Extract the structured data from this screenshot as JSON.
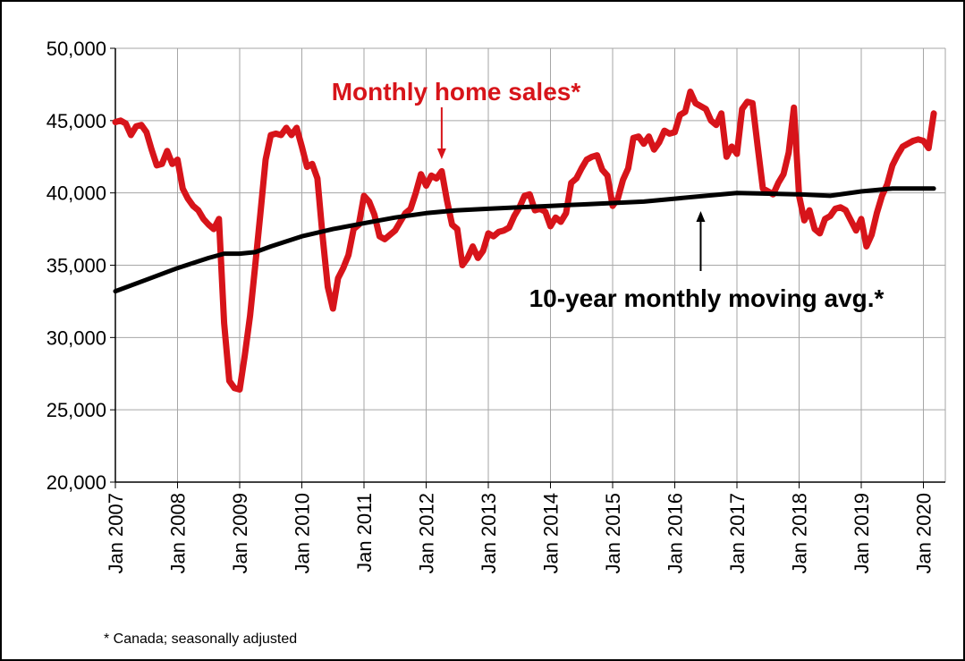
{
  "chart_data": {
    "type": "line",
    "title": "",
    "xlabel": "",
    "ylabel": "",
    "ylim": [
      20000,
      50000
    ],
    "yticks": [
      20000,
      25000,
      30000,
      35000,
      40000,
      45000,
      50000
    ],
    "ytick_labels": [
      "20,000",
      "25,000",
      "30,000",
      "35,000",
      "40,000",
      "45,000",
      "50,000"
    ],
    "xlim": [
      "2007-01",
      "2020-03"
    ],
    "xticks": [
      "2007-01",
      "2008-01",
      "2009-01",
      "2010-01",
      "2011-01",
      "2012-01",
      "2013-01",
      "2014-01",
      "2015-01",
      "2016-01",
      "2017-01",
      "2018-01",
      "2019-01",
      "2020-01"
    ],
    "xtick_labels": [
      "Jan 2007",
      "Jan 2008",
      "Jan 2009",
      "Jan 2010",
      "Jan 2011",
      "Jan 2012",
      "Jan 2013",
      "Jan 2014",
      "Jan 2015",
      "Jan 2016",
      "Jan 2017",
      "Jan 2018",
      "Jan 2019",
      "Jan 2020"
    ],
    "grid": true,
    "series": [
      {
        "name": "Monthly home sales*",
        "color": "#d7141a",
        "points": [
          [
            "2007-01",
            44900
          ],
          [
            "2007-02",
            45000
          ],
          [
            "2007-03",
            44800
          ],
          [
            "2007-04",
            44000
          ],
          [
            "2007-05",
            44600
          ],
          [
            "2007-06",
            44700
          ],
          [
            "2007-07",
            44200
          ],
          [
            "2007-08",
            43000
          ],
          [
            "2007-09",
            41900
          ],
          [
            "2007-10",
            42000
          ],
          [
            "2007-11",
            42900
          ],
          [
            "2007-12",
            42000
          ],
          [
            "2008-01",
            42300
          ],
          [
            "2008-02",
            40300
          ],
          [
            "2008-03",
            39600
          ],
          [
            "2008-04",
            39100
          ],
          [
            "2008-05",
            38800
          ],
          [
            "2008-06",
            38200
          ],
          [
            "2008-07",
            37800
          ],
          [
            "2008-08",
            37500
          ],
          [
            "2008-09",
            38200
          ],
          [
            "2008-10",
            31000
          ],
          [
            "2008-11",
            27000
          ],
          [
            "2008-12",
            26500
          ],
          [
            "2009-01",
            26400
          ],
          [
            "2009-02",
            28800
          ],
          [
            "2009-03",
            31500
          ],
          [
            "2009-04",
            35000
          ],
          [
            "2009-05",
            38600
          ],
          [
            "2009-06",
            42300
          ],
          [
            "2009-07",
            44000
          ],
          [
            "2009-08",
            44100
          ],
          [
            "2009-09",
            44000
          ],
          [
            "2009-10",
            44500
          ],
          [
            "2009-11",
            44000
          ],
          [
            "2009-12",
            44500
          ],
          [
            "2010-01",
            43200
          ],
          [
            "2010-02",
            41800
          ],
          [
            "2010-03",
            42000
          ],
          [
            "2010-04",
            41000
          ],
          [
            "2010-05",
            37000
          ],
          [
            "2010-06",
            33500
          ],
          [
            "2010-07",
            32000
          ],
          [
            "2010-08",
            34100
          ],
          [
            "2010-09",
            34800
          ],
          [
            "2010-10",
            35700
          ],
          [
            "2010-11",
            37500
          ],
          [
            "2010-12",
            37800
          ],
          [
            "2011-01",
            39800
          ],
          [
            "2011-02",
            39400
          ],
          [
            "2011-03",
            38500
          ],
          [
            "2011-04",
            37000
          ],
          [
            "2011-05",
            36800
          ],
          [
            "2011-06",
            37100
          ],
          [
            "2011-07",
            37400
          ],
          [
            "2011-08",
            38000
          ],
          [
            "2011-09",
            38600
          ],
          [
            "2011-10",
            38900
          ],
          [
            "2011-11",
            40000
          ],
          [
            "2011-12",
            41300
          ],
          [
            "2012-01",
            40500
          ],
          [
            "2012-02",
            41200
          ],
          [
            "2012-03",
            41000
          ],
          [
            "2012-04",
            41500
          ],
          [
            "2012-05",
            39500
          ],
          [
            "2012-06",
            37800
          ],
          [
            "2012-07",
            37500
          ],
          [
            "2012-08",
            35000
          ],
          [
            "2012-09",
            35500
          ],
          [
            "2012-10",
            36300
          ],
          [
            "2012-11",
            35500
          ],
          [
            "2012-12",
            36000
          ],
          [
            "2013-01",
            37200
          ],
          [
            "2013-02",
            37000
          ],
          [
            "2013-03",
            37300
          ],
          [
            "2013-04",
            37400
          ],
          [
            "2013-05",
            37600
          ],
          [
            "2013-06",
            38400
          ],
          [
            "2013-07",
            39000
          ],
          [
            "2013-08",
            39800
          ],
          [
            "2013-09",
            39900
          ],
          [
            "2013-10",
            38800
          ],
          [
            "2013-11",
            38900
          ],
          [
            "2013-12",
            38700
          ],
          [
            "2014-01",
            37700
          ],
          [
            "2014-02",
            38300
          ],
          [
            "2014-03",
            38000
          ],
          [
            "2014-04",
            38600
          ],
          [
            "2014-05",
            40700
          ],
          [
            "2014-06",
            41000
          ],
          [
            "2014-07",
            41700
          ],
          [
            "2014-08",
            42300
          ],
          [
            "2014-09",
            42500
          ],
          [
            "2014-10",
            42600
          ],
          [
            "2014-11",
            41600
          ],
          [
            "2014-12",
            41200
          ],
          [
            "2015-01",
            39100
          ],
          [
            "2015-02",
            39600
          ],
          [
            "2015-03",
            40900
          ],
          [
            "2015-04",
            41700
          ],
          [
            "2015-05",
            43800
          ],
          [
            "2015-06",
            43900
          ],
          [
            "2015-07",
            43400
          ],
          [
            "2015-08",
            43900
          ],
          [
            "2015-09",
            43000
          ],
          [
            "2015-10",
            43500
          ],
          [
            "2015-11",
            44300
          ],
          [
            "2015-12",
            44100
          ],
          [
            "2016-01",
            44200
          ],
          [
            "2016-02",
            45400
          ],
          [
            "2016-03",
            45600
          ],
          [
            "2016-04",
            47000
          ],
          [
            "2016-05",
            46200
          ],
          [
            "2016-06",
            46000
          ],
          [
            "2016-07",
            45800
          ],
          [
            "2016-08",
            45000
          ],
          [
            "2016-09",
            44700
          ],
          [
            "2016-10",
            45500
          ],
          [
            "2016-11",
            42500
          ],
          [
            "2016-12",
            43200
          ],
          [
            "2017-01",
            42700
          ],
          [
            "2017-02",
            45800
          ],
          [
            "2017-03",
            46300
          ],
          [
            "2017-04",
            46200
          ],
          [
            "2017-05",
            43200
          ],
          [
            "2017-06",
            40300
          ],
          [
            "2017-07",
            40100
          ],
          [
            "2017-08",
            39900
          ],
          [
            "2017-09",
            40700
          ],
          [
            "2017-10",
            41300
          ],
          [
            "2017-11",
            42800
          ],
          [
            "2017-12",
            45900
          ],
          [
            "2018-01",
            39800
          ],
          [
            "2018-02",
            38100
          ],
          [
            "2018-03",
            38800
          ],
          [
            "2018-04",
            37500
          ],
          [
            "2018-05",
            37200
          ],
          [
            "2018-06",
            38200
          ],
          [
            "2018-07",
            38400
          ],
          [
            "2018-08",
            38900
          ],
          [
            "2018-09",
            39000
          ],
          [
            "2018-10",
            38800
          ],
          [
            "2018-11",
            38100
          ],
          [
            "2018-12",
            37400
          ],
          [
            "2019-01",
            38200
          ],
          [
            "2019-02",
            36300
          ],
          [
            "2019-03",
            37100
          ],
          [
            "2019-04",
            38600
          ],
          [
            "2019-05",
            39800
          ],
          [
            "2019-06",
            40600
          ],
          [
            "2019-07",
            41900
          ],
          [
            "2019-08",
            42600
          ],
          [
            "2019-09",
            43200
          ],
          [
            "2019-10",
            43400
          ],
          [
            "2019-11",
            43600
          ],
          [
            "2019-12",
            43700
          ],
          [
            "2020-01",
            43600
          ],
          [
            "2020-02",
            43100
          ],
          [
            "2020-03",
            45500
          ]
        ]
      },
      {
        "name": "10-year monthly moving avg.*",
        "color": "#000000",
        "points": [
          [
            "2007-01",
            33200
          ],
          [
            "2007-07",
            34000
          ],
          [
            "2008-01",
            34800
          ],
          [
            "2008-07",
            35500
          ],
          [
            "2008-10",
            35800
          ],
          [
            "2009-01",
            35800
          ],
          [
            "2009-04",
            35900
          ],
          [
            "2009-07",
            36300
          ],
          [
            "2010-01",
            37000
          ],
          [
            "2010-07",
            37500
          ],
          [
            "2011-01",
            37900
          ],
          [
            "2011-07",
            38300
          ],
          [
            "2012-01",
            38600
          ],
          [
            "2012-07",
            38800
          ],
          [
            "2013-01",
            38900
          ],
          [
            "2013-07",
            39000
          ],
          [
            "2014-01",
            39100
          ],
          [
            "2014-07",
            39200
          ],
          [
            "2015-01",
            39300
          ],
          [
            "2015-07",
            39400
          ],
          [
            "2016-01",
            39600
          ],
          [
            "2016-07",
            39800
          ],
          [
            "2017-01",
            40000
          ],
          [
            "2017-07",
            39950
          ],
          [
            "2018-01",
            39900
          ],
          [
            "2018-07",
            39800
          ],
          [
            "2019-01",
            40100
          ],
          [
            "2019-07",
            40300
          ],
          [
            "2020-01",
            40300
          ],
          [
            "2020-03",
            40300
          ]
        ]
      }
    ],
    "annotations": [
      {
        "text": "Monthly home sales*",
        "color": "#d7141a",
        "points_to": [
          "2012-04",
          41500
        ]
      },
      {
        "text": "10-year monthly moving avg.*",
        "color": "#000000",
        "points_to": [
          "2016-06",
          39800
        ]
      }
    ],
    "footnote": "* Canada; seasonally adjusted"
  }
}
